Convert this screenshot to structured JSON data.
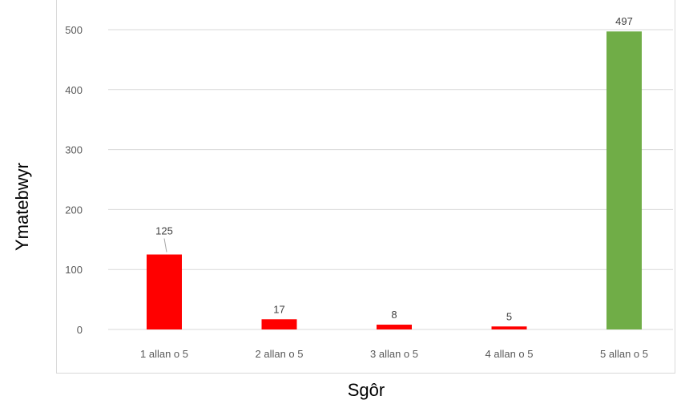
{
  "chart_data": {
    "type": "bar",
    "title": "",
    "xlabel": "Sgôr",
    "ylabel": "Ymatebwyr",
    "categories": [
      "1 allan o 5",
      "2 allan o 5",
      "3 allan o 5",
      "4 allan o 5",
      "5 allan o 5"
    ],
    "values": [
      125,
      17,
      8,
      5,
      497
    ],
    "data_labels": [
      "125",
      "17",
      "8",
      "5",
      "497"
    ],
    "colors": [
      "#ff0000",
      "#ff0000",
      "#ff0000",
      "#ff0000",
      "#70ad47"
    ],
    "ylim": [
      0,
      500
    ],
    "yticks": [
      0,
      100,
      200,
      300,
      400,
      500
    ],
    "grid": true,
    "legend": "none"
  },
  "colors": {
    "gridline": "#d9d9d9",
    "axis_text": "#595959",
    "label_text": "#404040"
  }
}
